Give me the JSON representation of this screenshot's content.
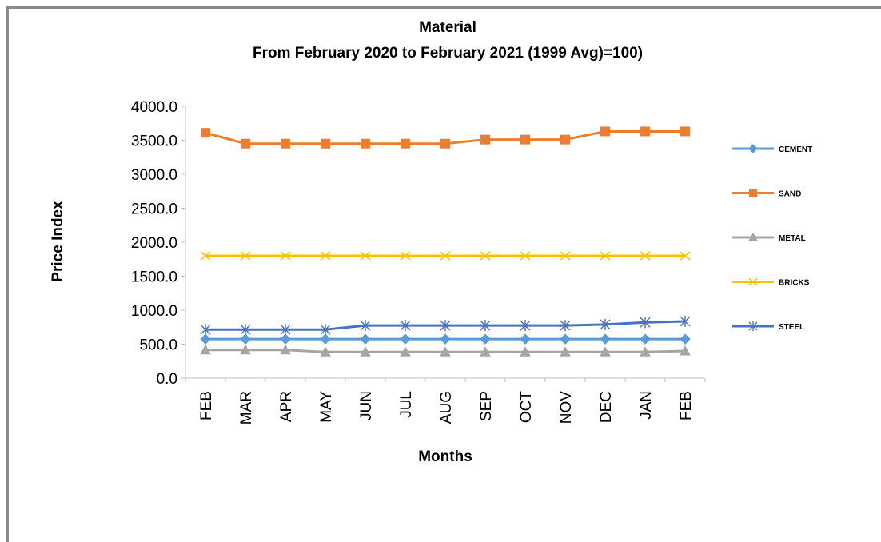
{
  "chart_data": {
    "type": "line",
    "title": "Material",
    "subtitle": "From  February  2020  to  February  2021 (1999 Avg)=100)",
    "xlabel": "Months",
    "ylabel": "Price Index",
    "categories": [
      "FEB",
      "MAR",
      "APR",
      "MAY",
      "JUN",
      "JUL",
      "AUG",
      "SEP",
      "OCT",
      "NOV",
      "DEC",
      "JAN",
      "FEB"
    ],
    "ylim": [
      0,
      4000
    ],
    "yticks": [
      "0.0",
      "500.0",
      "1000.0",
      "1500.0",
      "2000.0",
      "2500.0",
      "3000.0",
      "3500.0",
      "4000.0"
    ],
    "grid": false,
    "legend_position": "right",
    "series": [
      {
        "name": "CEMENT",
        "color": "#5b9bd5",
        "marker": "diamond",
        "values": [
          575,
          575,
          575,
          575,
          575,
          575,
          575,
          575,
          575,
          575,
          575,
          575,
          575
        ]
      },
      {
        "name": "SAND",
        "color": "#ed7d31",
        "marker": "square",
        "values": [
          3610,
          3450,
          3450,
          3450,
          3450,
          3450,
          3450,
          3510,
          3510,
          3510,
          3630,
          3630,
          3630
        ]
      },
      {
        "name": "METAL",
        "color": "#a5a5a5",
        "marker": "triangle",
        "values": [
          415,
          415,
          415,
          385,
          385,
          385,
          385,
          385,
          385,
          385,
          385,
          385,
          400
        ]
      },
      {
        "name": "BRICKS",
        "color": "#ffc000",
        "marker": "x",
        "values": [
          1800,
          1800,
          1800,
          1800,
          1800,
          1800,
          1800,
          1800,
          1800,
          1800,
          1800,
          1800,
          1800
        ]
      },
      {
        "name": "STEEL",
        "color": "#4472c4",
        "marker": "star",
        "values": [
          715,
          715,
          715,
          715,
          775,
          775,
          775,
          775,
          775,
          775,
          790,
          820,
          835
        ]
      }
    ]
  }
}
